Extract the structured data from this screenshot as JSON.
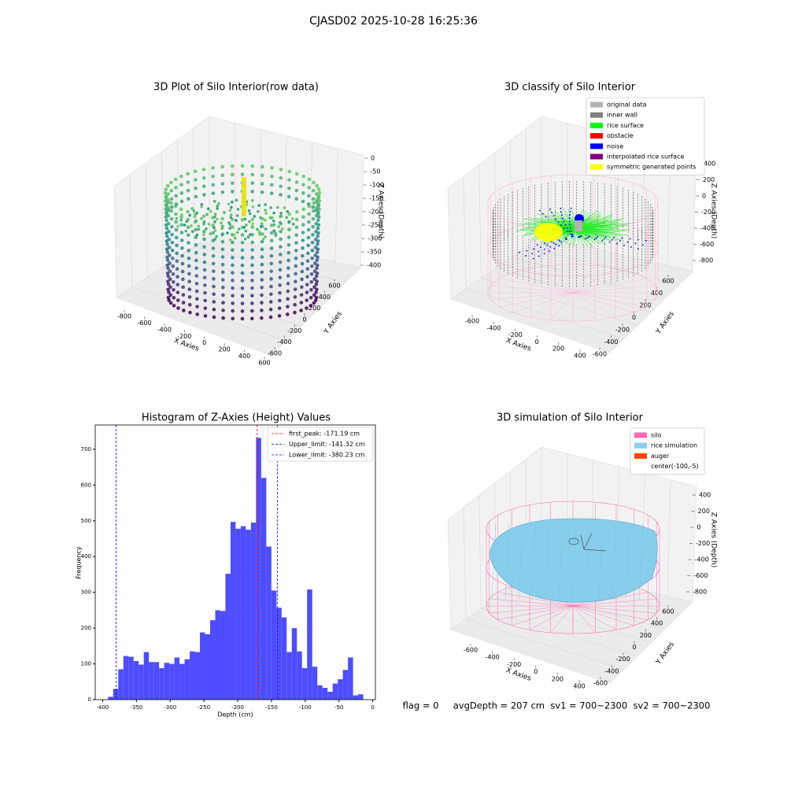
{
  "title": "CJASD02 2025-10-28 16:25:36",
  "status_text": "flag = 0     avgDepth = 207 cm  sv1 = 700~2300  sv2 = 700~2300",
  "chart_data": [
    {
      "type": "scatter3d",
      "title": "3D Plot of Silo Interior(row data)",
      "xlabel": "X Axies",
      "ylabel": "Y Axies",
      "zlabel": "Z Axies (Depth)",
      "xlim": [
        -800,
        600
      ],
      "ylim": [
        -600,
        600
      ],
      "zlim": [
        -400,
        0
      ],
      "xticks": [
        -800,
        -600,
        -400,
        -200,
        0,
        200,
        400,
        600
      ],
      "yticks": [
        -600,
        -400,
        -200,
        0,
        200,
        400,
        600
      ],
      "zticks": [
        0,
        -50,
        -100,
        -150,
        -200,
        -250,
        -300,
        -350,
        -400
      ]
    },
    {
      "type": "classify3d",
      "title": "3D classify of Silo Interior",
      "xlabel": "X Axies",
      "ylabel": "Y Axies",
      "zlabel": "Z Axies (Depth)",
      "xlim": [
        -600,
        400
      ],
      "ylim": [
        -600,
        600
      ],
      "zlim": [
        -800,
        400
      ],
      "xticks": [
        -600,
        -400,
        -200,
        0,
        200,
        400
      ],
      "yticks": [
        -600,
        -400,
        -200,
        0,
        200,
        400,
        600
      ],
      "zticks": [
        400,
        200,
        0,
        -200,
        -400,
        -600,
        -800
      ],
      "legend": [
        {
          "name": "original data",
          "color": "#b3b3b3"
        },
        {
          "name": "inner wall",
          "color": "#808080"
        },
        {
          "name": "rice surface",
          "color": "#00ff00"
        },
        {
          "name": "obstacle",
          "color": "#ff0000"
        },
        {
          "name": "noise",
          "color": "#0000ff"
        },
        {
          "name": "interpolated rice surface",
          "color": "#800080"
        },
        {
          "name": "symmetric generated points",
          "color": "#ffff00"
        }
      ]
    },
    {
      "type": "histogram",
      "title": "Histogram of Z-Axies (Height) Values",
      "xlabel": "Depth (cm)",
      "ylabel": "Frequency",
      "color": "#4d4dff",
      "bins": [
        -392,
        -384.44,
        -376.88,
        -369.32,
        -361.76,
        -354.2,
        -346.64,
        -339.08,
        -331.52,
        -323.96,
        -316.4,
        -308.84,
        -301.28,
        -293.72,
        -286.16,
        -278.6,
        -271.04,
        -263.48,
        -255.92,
        -248.36,
        -240.8,
        -233.24,
        -225.68,
        -218.12,
        -210.56,
        -203,
        -195.44,
        -187.88,
        -180.32,
        -172.76,
        -165.2,
        -157.64,
        -150.08,
        -142.52,
        -134.96,
        -127.4,
        -119.84,
        -112.28,
        -104.72,
        -97.16,
        -89.6,
        -82.04,
        -74.48,
        -66.92,
        -59.36,
        -51.8,
        -44.24,
        -36.68,
        -29.12,
        -21.56,
        -14
      ],
      "counts": [
        8,
        30,
        85,
        122,
        120,
        108,
        98,
        133,
        105,
        105,
        88,
        103,
        100,
        118,
        100,
        113,
        135,
        133,
        188,
        183,
        222,
        250,
        248,
        352,
        497,
        478,
        485,
        475,
        495,
        732,
        620,
        428,
        305,
        257,
        230,
        133,
        200,
        135,
        88,
        308,
        92,
        40,
        33,
        22,
        45,
        57,
        83,
        118,
        12,
        15
      ],
      "xlim": [
        -411,
        4
      ],
      "ylim": [
        0,
        768
      ],
      "xticks": [
        -400,
        -350,
        -300,
        -250,
        -200,
        -150,
        -100,
        -50,
        0
      ],
      "yticks": [
        0,
        100,
        200,
        300,
        400,
        500,
        600,
        700
      ],
      "lines": [
        {
          "name": "first_peak: -171.19 cm",
          "value": -171.19,
          "color": "#ff0000"
        },
        {
          "name": "Upper_limit: -141.32 cm",
          "value": -141.32,
          "color": "#0000ff"
        },
        {
          "name": "Lower_limit: -380.23 cm",
          "value": -380.23,
          "color": "#0000ff"
        }
      ],
      "legend_position": "upper right"
    },
    {
      "type": "surface3d",
      "title": "3D simulation of Silo Interior",
      "xlabel": "X Axies",
      "ylabel": "Y Axies",
      "zlabel": "Z Axies (Depth)",
      "xlim": [
        -600,
        400
      ],
      "ylim": [
        -600,
        600
      ],
      "zlim": [
        -800,
        400
      ],
      "xticks": [
        -600,
        -400,
        -200,
        0,
        200,
        400
      ],
      "yticks": [
        -600,
        -400,
        -200,
        0,
        200,
        400,
        600
      ],
      "zticks": [
        400,
        200,
        0,
        -200,
        -400,
        -600,
        -800
      ],
      "legend": [
        {
          "name": "silo",
          "color": "#ff69b4"
        },
        {
          "name": "rice simulation",
          "color": "#87ceeb"
        },
        {
          "name": "auger",
          "color": "#ff4500"
        },
        {
          "name": "center(-100,-5)",
          "color": "none"
        }
      ]
    }
  ]
}
